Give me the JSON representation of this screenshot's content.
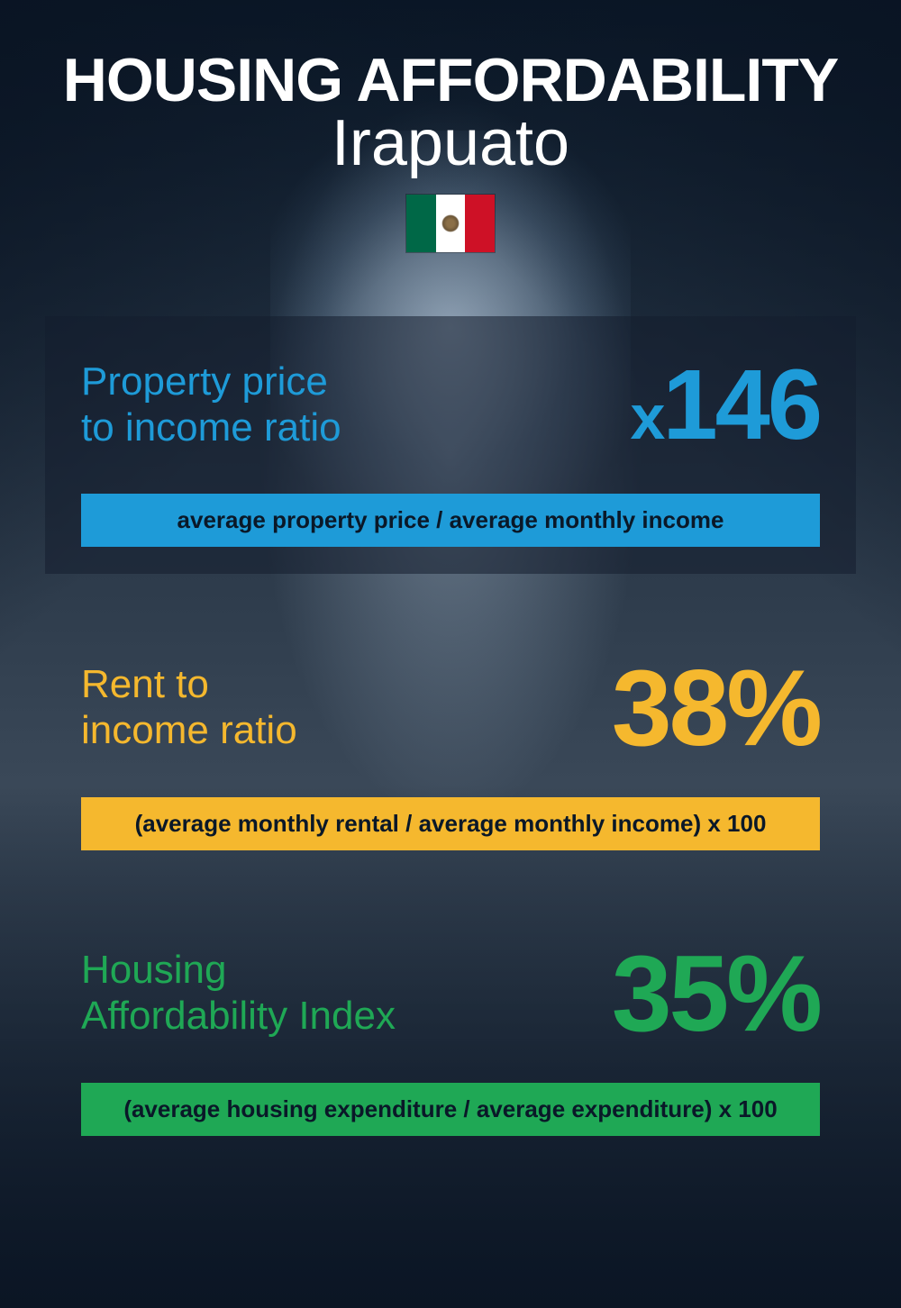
{
  "header": {
    "title": "HOUSING AFFORDABILITY",
    "location": "Irapuato",
    "flag_colors": {
      "left": "#006847",
      "center": "#ffffff",
      "right": "#ce1126"
    }
  },
  "metrics": [
    {
      "label_line1": "Property price",
      "label_line2": "to income ratio",
      "value_prefix": "x",
      "value": "146",
      "formula": "average property price / average monthly income",
      "accent_color": "#1e9bd8",
      "label_fontsize": 44,
      "value_fontsize": 110,
      "formula_fontsize": 26,
      "has_card_bg": true
    },
    {
      "label_line1": "Rent to",
      "label_line2": "income ratio",
      "value_prefix": "",
      "value": "38%",
      "formula": "(average monthly rental / average monthly income) x 100",
      "accent_color": "#f5b82e",
      "label_fontsize": 44,
      "value_fontsize": 120,
      "formula_fontsize": 26,
      "has_card_bg": false
    },
    {
      "label_line1": "Housing",
      "label_line2": "Affordability Index",
      "value_prefix": "",
      "value": "35%",
      "formula": "(average housing expenditure / average expenditure) x 100",
      "accent_color": "#1fa855",
      "label_fontsize": 44,
      "value_fontsize": 120,
      "formula_fontsize": 26,
      "has_card_bg": false
    }
  ],
  "background": {
    "base_gradient_top": "#0a1828",
    "base_gradient_bottom": "#1a2838",
    "card_overlay": "rgba(20,30,45,0.55)"
  }
}
